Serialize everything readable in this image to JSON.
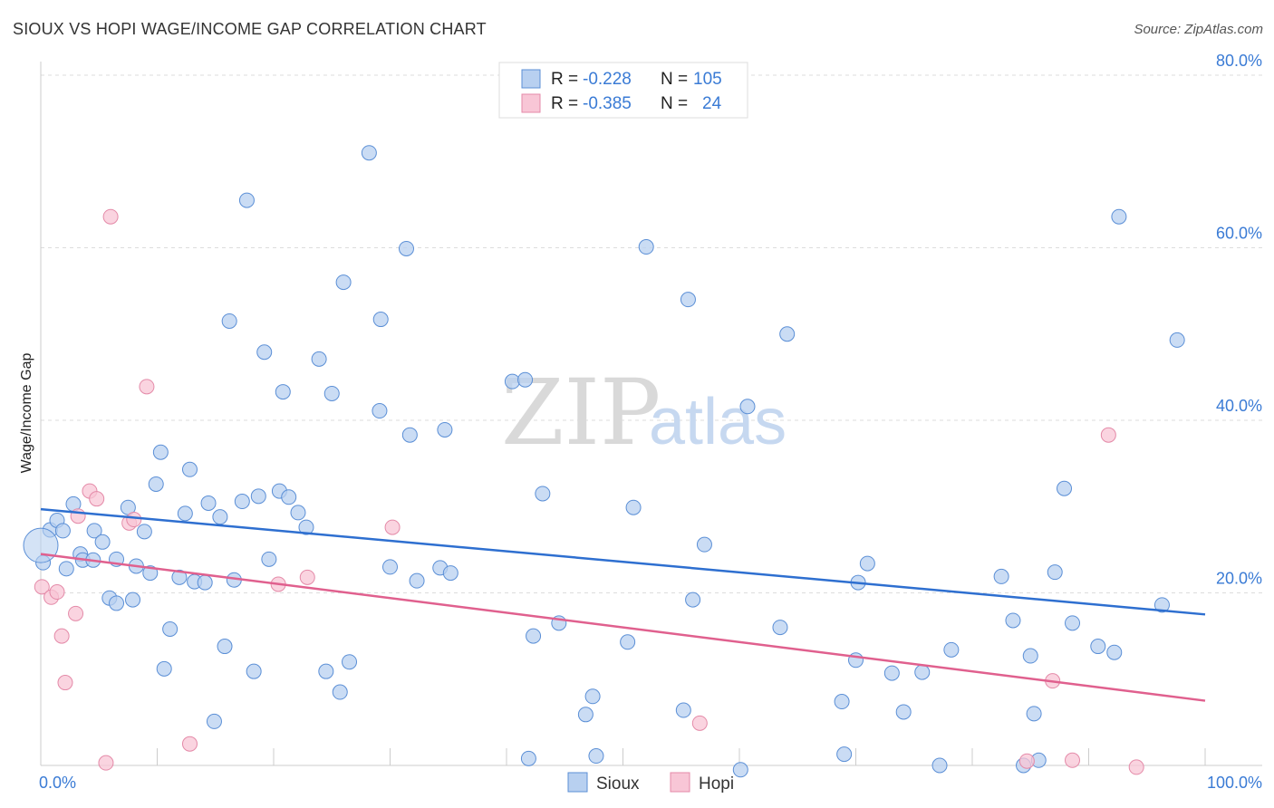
{
  "title": "SIOUX VS HOPI WAGE/INCOME GAP CORRELATION CHART",
  "source": "Source: ZipAtlas.com",
  "watermark": {
    "zip": "ZIP",
    "atlas": "atlas"
  },
  "colors": {
    "sioux_fill": "#b8d0f0",
    "sioux_stroke": "#5b8fd6",
    "sioux_line": "#2e6fd0",
    "hopi_fill": "#f8c6d6",
    "hopi_stroke": "#e48aa8",
    "hopi_line": "#e0608e",
    "grid": "#dddddd",
    "axis_text": "#3a7bd5"
  },
  "legend": {
    "rows": [
      {
        "r_label": "R =",
        "r_value": "-0.228",
        "n_label": "N =",
        "n_value": "105"
      },
      {
        "r_label": "R =",
        "r_value": "-0.385",
        "n_label": "N =",
        "n_value": "24"
      }
    ]
  },
  "bottom_legend": [
    "Sioux",
    "Hopi"
  ],
  "chart_data": {
    "type": "scatter",
    "title": "SIOUX VS HOPI WAGE/INCOME GAP CORRELATION CHART",
    "xlabel": "",
    "ylabel": "Wage/Income Gap",
    "xlim": [
      0,
      100
    ],
    "ylim": [
      0,
      80
    ],
    "x_tick_labels": [
      "0.0%",
      "100.0%"
    ],
    "y_ticks": [
      20,
      40,
      60,
      80
    ],
    "y_tick_labels": [
      "20.0%",
      "40.0%",
      "60.0%",
      "80.0%"
    ],
    "grid": true,
    "legend_position": "top-center",
    "series": [
      {
        "name": "Sioux",
        "trend": {
          "x": [
            0,
            100
          ],
          "y": [
            29.7,
            17.5
          ]
        },
        "points": [
          [
            0.2,
            23.5
          ],
          [
            0.8,
            27.3
          ],
          [
            1.4,
            28.4
          ],
          [
            1.9,
            27.2
          ],
          [
            2.2,
            22.8
          ],
          [
            2.8,
            30.3
          ],
          [
            3.4,
            24.5
          ],
          [
            3.6,
            23.8
          ],
          [
            4.5,
            23.8
          ],
          [
            4.6,
            27.2
          ],
          [
            5.3,
            25.9
          ],
          [
            5.9,
            19.4
          ],
          [
            6.5,
            18.8
          ],
          [
            6.5,
            23.9
          ],
          [
            7.5,
            29.9
          ],
          [
            7.9,
            19.2
          ],
          [
            8.2,
            23.1
          ],
          [
            8.9,
            27.1
          ],
          [
            9.4,
            22.3
          ],
          [
            9.9,
            32.6
          ],
          [
            10.3,
            36.3
          ],
          [
            10.6,
            11.2
          ],
          [
            11.1,
            15.8
          ],
          [
            11.9,
            21.8
          ],
          [
            12.4,
            29.2
          ],
          [
            12.8,
            34.3
          ],
          [
            13.2,
            21.3
          ],
          [
            14.1,
            21.2
          ],
          [
            14.4,
            30.4
          ],
          [
            14.9,
            5.1
          ],
          [
            15.4,
            28.8
          ],
          [
            15.8,
            13.8
          ],
          [
            16.2,
            51.5
          ],
          [
            16.6,
            21.5
          ],
          [
            17.3,
            30.6
          ],
          [
            17.7,
            65.5
          ],
          [
            18.3,
            10.9
          ],
          [
            18.7,
            31.2
          ],
          [
            19.2,
            47.9
          ],
          [
            19.6,
            23.9
          ],
          [
            20.5,
            31.8
          ],
          [
            20.8,
            43.3
          ],
          [
            21.3,
            31.1
          ],
          [
            22.1,
            29.3
          ],
          [
            22.8,
            27.6
          ],
          [
            23.9,
            47.1
          ],
          [
            24.5,
            10.9
          ],
          [
            25.0,
            43.1
          ],
          [
            25.7,
            8.5
          ],
          [
            26.0,
            56.0
          ],
          [
            26.5,
            12.0
          ],
          [
            28.2,
            71.0
          ],
          [
            29.1,
            41.1
          ],
          [
            29.2,
            51.7
          ],
          [
            30.0,
            23.0
          ],
          [
            31.4,
            59.9
          ],
          [
            31.7,
            38.3
          ],
          [
            32.3,
            21.4
          ],
          [
            34.3,
            22.9
          ],
          [
            34.7,
            38.9
          ],
          [
            35.2,
            22.3
          ],
          [
            40.5,
            44.5
          ],
          [
            41.6,
            44.7
          ],
          [
            41.9,
            0.8
          ],
          [
            42.3,
            15.0
          ],
          [
            43.1,
            31.5
          ],
          [
            44.5,
            16.5
          ],
          [
            46.8,
            5.9
          ],
          [
            47.4,
            8.0
          ],
          [
            47.7,
            1.1
          ],
          [
            50.4,
            14.3
          ],
          [
            50.9,
            29.9
          ],
          [
            52.0,
            60.1
          ],
          [
            55.2,
            6.4
          ],
          [
            55.6,
            54.0
          ],
          [
            56.0,
            19.2
          ],
          [
            57.0,
            25.6
          ],
          [
            60.1,
            -0.5
          ],
          [
            60.7,
            41.6
          ],
          [
            63.5,
            16.0
          ],
          [
            64.1,
            50.0
          ],
          [
            68.8,
            7.4
          ],
          [
            69.0,
            1.3
          ],
          [
            70.0,
            12.2
          ],
          [
            70.2,
            21.2
          ],
          [
            71.0,
            23.4
          ],
          [
            73.1,
            10.7
          ],
          [
            74.1,
            6.2
          ],
          [
            75.7,
            10.8
          ],
          [
            77.2,
            0.0
          ],
          [
            78.2,
            13.4
          ],
          [
            82.5,
            21.9
          ],
          [
            83.5,
            16.8
          ],
          [
            84.4,
            0.0
          ],
          [
            85.0,
            12.7
          ],
          [
            85.3,
            6.0
          ],
          [
            85.7,
            0.6
          ],
          [
            87.1,
            22.4
          ],
          [
            87.9,
            32.1
          ],
          [
            88.6,
            16.5
          ],
          [
            90.8,
            13.8
          ],
          [
            92.2,
            13.1
          ],
          [
            92.6,
            63.6
          ],
          [
            96.3,
            18.6
          ],
          [
            97.6,
            49.3
          ]
        ]
      },
      {
        "name": "Hopi",
        "trend": {
          "x": [
            0,
            100
          ],
          "y": [
            24.5,
            7.5
          ]
        },
        "points": [
          [
            0.1,
            20.7
          ],
          [
            0.9,
            19.5
          ],
          [
            1.4,
            20.1
          ],
          [
            1.8,
            15.0
          ],
          [
            2.1,
            9.6
          ],
          [
            3.0,
            17.6
          ],
          [
            3.2,
            28.9
          ],
          [
            4.2,
            31.8
          ],
          [
            4.8,
            30.9
          ],
          [
            5.6,
            0.3
          ],
          [
            6.0,
            63.6
          ],
          [
            7.6,
            28.1
          ],
          [
            8.0,
            28.5
          ],
          [
            9.1,
            43.9
          ],
          [
            12.8,
            2.5
          ],
          [
            20.4,
            21.0
          ],
          [
            22.9,
            21.8
          ],
          [
            30.2,
            27.6
          ],
          [
            56.6,
            4.9
          ],
          [
            84.7,
            0.5
          ],
          [
            86.9,
            9.8
          ],
          [
            88.6,
            0.6
          ],
          [
            91.7,
            38.3
          ],
          [
            94.1,
            -0.2
          ]
        ]
      }
    ]
  }
}
